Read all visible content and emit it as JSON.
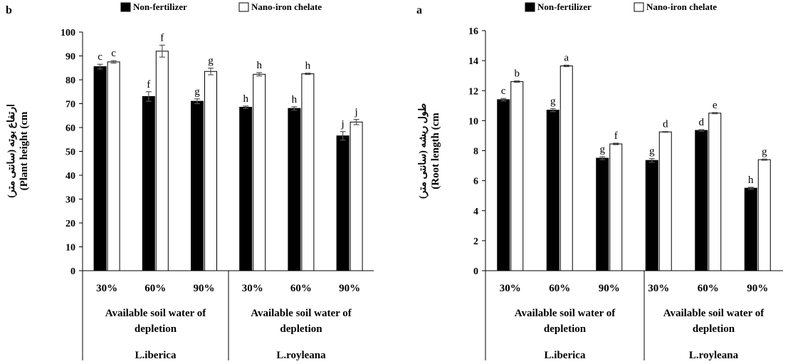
{
  "chart_data": [
    {
      "type": "bar",
      "panel_label": "b",
      "legend": [
        "Non-fertilizer",
        "Nano-iron chelate"
      ],
      "ylabel_persian": "ارتفاع بوته (سانتی متر)",
      "ylabel": "(Plant height (cm",
      "ylim": [
        0,
        100
      ],
      "yticks": [
        "0",
        "10",
        "20",
        "30",
        "40",
        "50",
        "60",
        "70",
        "80",
        "90",
        "100"
      ],
      "categories": [
        "30%",
        "60%",
        "90%",
        "30%",
        "60%",
        "90%"
      ],
      "group_labels": [
        "Available soil water of depletion",
        "Available soil water of depletion"
      ],
      "species": [
        "L.iberica",
        "L.royleana"
      ],
      "series": [
        {
          "name": "Non-fertilizer",
          "color": "#000000",
          "values": [
            85.5,
            73,
            71,
            68.5,
            68,
            56.5
          ],
          "errors": [
            1.0,
            2.0,
            1.0,
            0.5,
            0.7,
            1.8
          ],
          "letters": [
            "c",
            "f",
            "g",
            "h",
            "h",
            "j"
          ]
        },
        {
          "name": "Nano-iron chelate",
          "color": "#ffffff",
          "values": [
            87.5,
            92,
            83.5,
            82.3,
            82.5,
            62.3
          ],
          "errors": [
            0.5,
            2.5,
            1.4,
            0.7,
            0.3,
            1.1
          ],
          "letters": [
            "c",
            "f",
            "g",
            "h",
            "h",
            "j"
          ]
        }
      ]
    },
    {
      "type": "bar",
      "panel_label": "a",
      "legend": [
        "Non-fertilizer",
        "Nano-iron chelate"
      ],
      "ylabel_persian": "طول ریشه (سانتی متر)",
      "ylabel": "(Root length (cm",
      "ylim": [
        0,
        16
      ],
      "yticks": [
        "0",
        "2",
        "4",
        "6",
        "8",
        "10",
        "12",
        "14",
        "16"
      ],
      "categories": [
        "30%",
        "60%",
        "90%",
        "30%",
        "60%",
        "90%"
      ],
      "group_labels": [
        "Available soil water of depletion",
        "Available soil water of depletion"
      ],
      "species": [
        "L.iberica",
        "L.royleana"
      ],
      "series": [
        {
          "name": "Non-fertilizer",
          "color": "#000000",
          "values": [
            11.4,
            10.7,
            7.5,
            7.35,
            9.35,
            5.5
          ],
          "errors": [
            0.08,
            0.1,
            0.1,
            0.12,
            0.05,
            0.06
          ],
          "letters": [
            "c",
            "g",
            "g",
            "g",
            "d",
            "h"
          ]
        },
        {
          "name": "Nano-iron chelate",
          "color": "#ffffff",
          "values": [
            12.6,
            13.65,
            8.45,
            9.25,
            10.5,
            7.4
          ],
          "errors": [
            0.05,
            0.05,
            0.05,
            0.03,
            0.04,
            0.04
          ],
          "letters": [
            "b",
            "a",
            "f",
            "d",
            "e",
            "g"
          ]
        }
      ]
    }
  ]
}
